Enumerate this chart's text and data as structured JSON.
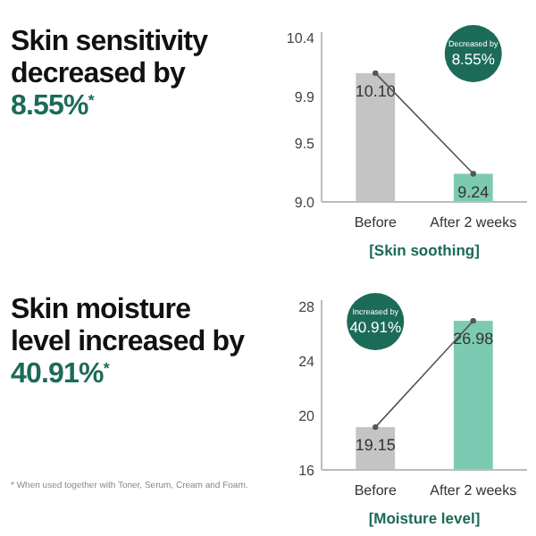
{
  "chart_data": [
    {
      "type": "bar",
      "title": "Skin sensitivity\ndecreased by\n8.55%$^{*}$",
      "xlabel": "[Skin soothing]",
      "categories": [
        "Before",
        "After 2 weeks"
      ],
      "series": [
        {
          "type": "bar",
          "values": [
            10.1,
            9.24
          ],
          "colors": [
            "#c4c4c4",
            "#7ccab2"
          ],
          "value_labels": [
            "10.10",
            "9.24"
          ]
        },
        {
          "type": "line",
          "values": [
            10.1,
            9.24
          ],
          "color": "#555555",
          "marker": "circle"
        }
      ],
      "ylim": [
        9.0,
        10.45
      ],
      "yticks": [
        {
          "value": 9.0,
          "label": "9.0"
        },
        9.5,
        9.9,
        10.4
      ],
      "grid": false,
      "annotations": [
        "Decreased by",
        "8.55%"
      ]
    },
    {
      "type": "bar",
      "title": "Skin moisture\nlevel increased by\n40.91%$^{*}$",
      "xlabel": "[Moisture level]",
      "categories": [
        "Before",
        "After 2 weeks"
      ],
      "series": [
        {
          "type": "bar",
          "values": [
            19.15,
            26.98
          ],
          "colors": [
            "#c4c4c4",
            "#7ccab2"
          ],
          "value_labels": [
            "19.15",
            "26.98"
          ]
        },
        {
          "type": "line",
          "values": [
            19.15,
            26.98
          ],
          "color": "#555555",
          "marker": "circle"
        }
      ],
      "ylim": [
        16,
        28.5
      ],
      "yticks": [
        16,
        20,
        24,
        28
      ],
      "grid": false,
      "annotations": [
        "Increased by",
        "40.91%",
        "* When used together with Toner, Serum, Cream and Foam."
      ]
    }
  ]
}
